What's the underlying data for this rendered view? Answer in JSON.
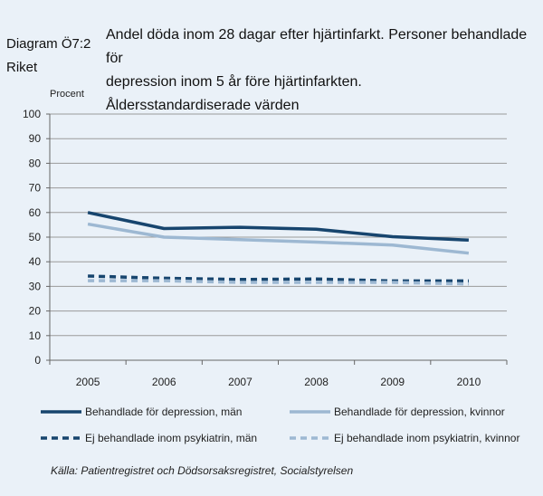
{
  "header": {
    "label_line1": "Diagram  Ö7:2",
    "label_line2": "Riket",
    "title_line1": "Andel döda inom 28 dagar efter hjärtinfarkt. Personer behandlade för",
    "title_line2": "depression inom 5 år före hjärtinfarkten.",
    "title_line3": "Åldersstandardiserade värden"
  },
  "chart_data": {
    "type": "line",
    "ylabel": "Procent",
    "xlabel": "",
    "ylim": [
      0,
      100
    ],
    "yticks": [
      0,
      10,
      20,
      30,
      40,
      50,
      60,
      70,
      80,
      90,
      100
    ],
    "grid": true,
    "legend_position": "bottom",
    "categories": [
      "2005",
      "2006",
      "2007",
      "2008",
      "2009",
      "2010"
    ],
    "series": [
      {
        "name": "Behandlade för depression, män",
        "values": [
          60,
          53.5,
          54,
          53.2,
          50.2,
          48.8
        ],
        "color": "#17456e",
        "style": "solid"
      },
      {
        "name": "Behandlade för depression, kvinnor",
        "values": [
          55.3,
          50,
          49,
          48,
          46.8,
          43.5
        ],
        "color": "#9db8d2",
        "style": "solid"
      },
      {
        "name": "Ej behandlade inom psykiatrin, män",
        "values": [
          34.2,
          33.3,
          32.8,
          33,
          32.2,
          32.2
        ],
        "color": "#17456e",
        "style": "dashed"
      },
      {
        "name": "Ej behandlade inom psykiatrin, kvinnor",
        "values": [
          32.3,
          32.3,
          31.6,
          31.6,
          31.6,
          31
        ],
        "color": "#9db8d2",
        "style": "dashed"
      }
    ]
  },
  "source": "Källa: Patientregistret och Dödsorsaksregistret, Socialstyrelsen"
}
